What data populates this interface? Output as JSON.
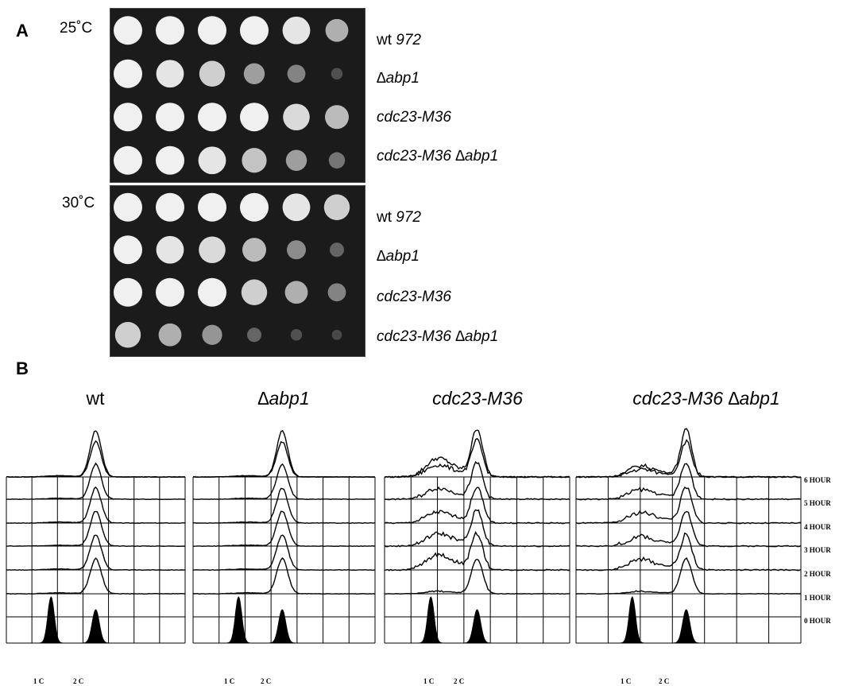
{
  "panel_a": {
    "letter": "A",
    "plates": [
      {
        "temperature": "25˚C",
        "strains": [
          {
            "prefix": "wt ",
            "name": "972"
          },
          {
            "prefix": "",
            "name": "∆abp1"
          },
          {
            "prefix": "",
            "name": "cdc23-M36"
          },
          {
            "prefix": "",
            "name": "cdc23-M36 ∆abp1"
          }
        ],
        "growth": [
          [
            1,
            1,
            1,
            1,
            0.95,
            0.7
          ],
          [
            1,
            0.95,
            0.85,
            0.6,
            0.45,
            0.1
          ],
          [
            1,
            1,
            1,
            1,
            0.9,
            0.75
          ],
          [
            1,
            1,
            0.95,
            0.8,
            0.6,
            0.35
          ]
        ]
      },
      {
        "temperature": "30˚C",
        "strains": [
          {
            "prefix": "wt ",
            "name": "972"
          },
          {
            "prefix": "",
            "name": "∆abp1"
          },
          {
            "prefix": "",
            "name": "cdc23-M36"
          },
          {
            "prefix": "",
            "name": "cdc23-M36 ∆abp1"
          }
        ],
        "growth": [
          [
            1,
            1,
            1,
            1,
            0.95,
            0.85
          ],
          [
            1,
            0.95,
            0.9,
            0.75,
            0.5,
            0.25
          ],
          [
            1,
            1,
            1,
            0.85,
            0.7,
            0.45
          ],
          [
            0.85,
            0.7,
            0.55,
            0.25,
            0.1,
            0.03
          ]
        ]
      }
    ]
  },
  "panel_b": {
    "letter": "B",
    "columns": [
      {
        "title": "wt",
        "italic": false
      },
      {
        "title": "∆abp1",
        "italic": true
      },
      {
        "title": "cdc23-M36",
        "italic": true
      },
      {
        "title": "cdc23-M36 ∆abp1",
        "italic": true
      }
    ],
    "hours": [
      "6 HOUR",
      "5 HOUR",
      "4 HOUR",
      "3 HOUR",
      "2 HOUR",
      "1 HOUR",
      "0 HOUR"
    ],
    "x_labels": [
      "1 C",
      "2 C"
    ]
  },
  "chart_data": {
    "type": "area",
    "title": "",
    "xlabel": "",
    "ylabel": "",
    "x_ticks": [
      "1 C",
      "2 C"
    ],
    "rows": [
      "6 HOUR",
      "5 HOUR",
      "4 HOUR",
      "3 HOUR",
      "2 HOUR",
      "1 HOUR",
      "0 HOUR"
    ],
    "series": [
      {
        "name": "wt",
        "one_c_fraction": [
          0.03,
          0.03,
          0.03,
          0.03,
          0.03,
          0.03,
          0.03
        ]
      },
      {
        "name": "∆abp1",
        "one_c_fraction": [
          0.03,
          0.03,
          0.03,
          0.03,
          0.03,
          0.03,
          0.03
        ]
      },
      {
        "name": "cdc23-M36",
        "one_c_fraction": [
          0.45,
          0.38,
          0.35,
          0.35,
          0.4,
          0.48,
          0.08
        ]
      },
      {
        "name": "cdc23-M36 ∆abp1",
        "one_c_fraction": [
          0.28,
          0.25,
          0.32,
          0.35,
          0.32,
          0.35,
          0.08
        ]
      }
    ]
  }
}
